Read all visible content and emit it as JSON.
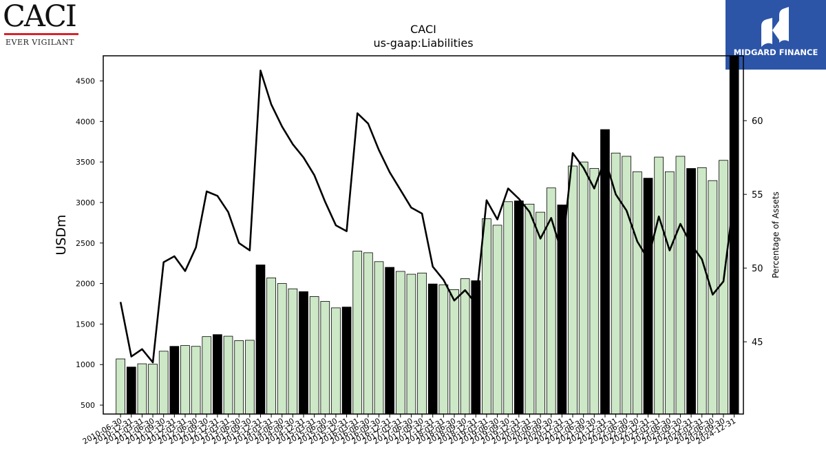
{
  "logos": {
    "left": {
      "wordmark": "CACI",
      "tagline": "EVER VIGILANT",
      "rule_color": "#d8232a"
    },
    "right": {
      "name": "MIDGARD FINANCE",
      "background": "#2c55a8",
      "icon": "midgard-mark-icon"
    }
  },
  "chart_data": {
    "type": "bar",
    "title": "CACI",
    "subtitle": "us-gaap:Liabilities",
    "ylabel": "USDm",
    "y2label": "Percentage of Assets",
    "ylim": [
      390,
      4810
    ],
    "y2lim": [
      40.1,
      64.4
    ],
    "yticks": [
      500,
      1000,
      1500,
      2000,
      2500,
      3000,
      3500,
      4000,
      4500
    ],
    "y2ticks": [
      45,
      50,
      55,
      60
    ],
    "colors": {
      "bar": "#cde8c6",
      "bar_highlight": "#000000",
      "bar_edge": "#000000",
      "line": "#000000"
    },
    "categories": [
      "2010-06-30",
      "2010-12-31",
      "2011-03-31",
      "2011-06-30",
      "2011-09-30",
      "2011-12-31",
      "2012-03-31",
      "2012-06-30",
      "2012-09-30",
      "2012-12-31",
      "2013-03-31",
      "2013-06-30",
      "2013-09-30",
      "2013-12-31",
      "2014-03-31",
      "2014-06-30",
      "2014-09-30",
      "2014-12-31",
      "2015-03-31",
      "2015-06-30",
      "2015-09-30",
      "2015-12-31",
      "2016-03-31",
      "2016-06-30",
      "2016-09-30",
      "2016-12-31",
      "2017-03-31",
      "2017-06-30",
      "2017-09-30",
      "2017-12-31",
      "2018-03-31",
      "2018-06-30",
      "2018-09-30",
      "2018-12-31",
      "2019-03-31",
      "2019-06-30",
      "2019-09-30",
      "2019-12-31",
      "2020-03-31",
      "2020-06-30",
      "2020-09-30",
      "2020-12-31",
      "2021-03-31",
      "2021-06-30",
      "2021-09-30",
      "2021-12-31",
      "2022-03-31",
      "2022-06-30",
      "2022-09-30",
      "2022-12-31",
      "2023-03-31",
      "2023-06-30",
      "2023-09-30",
      "2023-12-31",
      "2024-03-31",
      "2024-06-30",
      "2024-09-30",
      "2024-12-31"
    ],
    "series": [
      {
        "kind": "bar",
        "values": [
          1070,
          970,
          1010,
          1005,
          1165,
          1225,
          1235,
          1225,
          1345,
          1370,
          1350,
          1295,
          1300,
          2230,
          2070,
          2000,
          1935,
          1900,
          1840,
          1780,
          1700,
          1710,
          2400,
          2380,
          2270,
          2200,
          2150,
          2115,
          2130,
          1995,
          1985,
          1925,
          2060,
          2035,
          2800,
          2720,
          3010,
          3020,
          2980,
          2880,
          3180,
          2970,
          3450,
          3500,
          3420,
          3900,
          3610,
          3570,
          3380,
          3300,
          3560,
          3380,
          3570,
          3420,
          3430,
          3270,
          3520,
          4810
        ],
        "highlight": [
          false,
          true,
          false,
          false,
          false,
          true,
          false,
          false,
          false,
          true,
          false,
          false,
          false,
          true,
          false,
          false,
          false,
          true,
          false,
          false,
          false,
          true,
          false,
          false,
          false,
          true,
          false,
          false,
          false,
          true,
          false,
          false,
          false,
          true,
          false,
          false,
          false,
          true,
          false,
          false,
          false,
          true,
          false,
          false,
          false,
          true,
          false,
          false,
          false,
          true,
          false,
          false,
          false,
          true,
          false,
          false,
          false,
          true
        ]
      },
      {
        "kind": "line",
        "axis": "right",
        "values": [
          47.7,
          44.0,
          44.5,
          43.6,
          50.4,
          50.8,
          49.8,
          51.4,
          55.2,
          54.9,
          53.8,
          51.7,
          51.2,
          63.4,
          61.1,
          59.6,
          58.4,
          57.5,
          56.3,
          54.5,
          52.9,
          52.5,
          60.5,
          59.8,
          58.0,
          56.5,
          55.3,
          54.1,
          53.7,
          50.1,
          49.2,
          47.8,
          48.5,
          47.6,
          54.6,
          53.3,
          55.4,
          54.7,
          53.8,
          52.0,
          53.4,
          51.0,
          57.8,
          56.8,
          55.4,
          57.4,
          55.0,
          53.9,
          51.8,
          50.6,
          53.5,
          51.2,
          53.0,
          51.6,
          50.6,
          48.2,
          49.1,
          54.9
        ]
      }
    ],
    "legend": "none",
    "grid": false
  }
}
